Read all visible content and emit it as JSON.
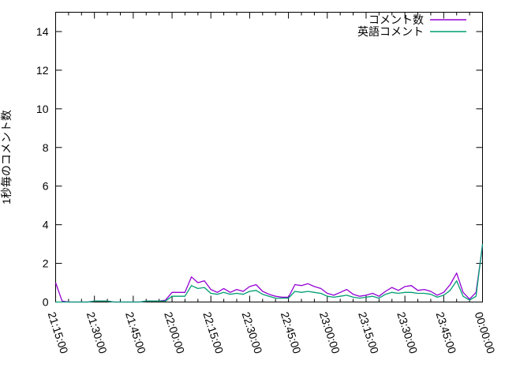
{
  "colors": {
    "background": "#ffffff",
    "axis": "#000000",
    "series_comments": "#9400d3",
    "series_english": "#009e73"
  },
  "chart_data": {
    "type": "line",
    "title": "",
    "xlabel": "",
    "ylabel": "1秒毎のコメント数",
    "ylim": [
      0,
      15
    ],
    "y_ticks": [
      0,
      2,
      4,
      6,
      8,
      10,
      12,
      14
    ],
    "x_range_minutes": [
      0,
      165
    ],
    "x_tick_interval_minutes": 15,
    "x_minor_tick_interval_minutes": 5,
    "x_tick_labels": [
      "21:15:00",
      "21:30:00",
      "21:45:00",
      "22:00:00",
      "22:15:00",
      "22:30:00",
      "22:45:00",
      "23:00:00",
      "23:15:00",
      "23:30:00",
      "23:45:00",
      "00:00:00"
    ],
    "grid": false,
    "legend_position": "top-right-inside",
    "x_offsets_minutes": [
      0,
      2.5,
      5,
      7.5,
      10,
      12.5,
      15,
      17.5,
      20,
      22.5,
      25,
      27.5,
      30,
      32.5,
      35,
      37.5,
      40,
      42.5,
      45,
      47.5,
      50,
      52.5,
      55,
      57.5,
      60,
      62.5,
      65,
      67.5,
      70,
      72.5,
      75,
      77.5,
      80,
      82.5,
      85,
      87.5,
      90,
      92.5,
      95,
      97.5,
      100,
      102.5,
      105,
      107.5,
      110,
      112.5,
      115,
      117.5,
      120,
      122.5,
      125,
      127.5,
      130,
      132.5,
      135,
      137.5,
      140,
      142.5,
      145,
      147.5,
      150,
      152.5,
      155,
      157.5,
      160,
      162.5,
      165
    ],
    "series": [
      {
        "name": "コメント数",
        "color": "#9400d3",
        "values": [
          1.0,
          0.05,
          0,
          0,
          0,
          0,
          0.05,
          0.05,
          0.05,
          0,
          0,
          0,
          0,
          0,
          0.05,
          0.05,
          0.05,
          0.1,
          0.5,
          0.5,
          0.5,
          1.3,
          1.0,
          1.1,
          0.65,
          0.5,
          0.7,
          0.5,
          0.65,
          0.55,
          0.8,
          0.9,
          0.55,
          0.4,
          0.3,
          0.25,
          0.25,
          0.9,
          0.85,
          0.95,
          0.8,
          0.7,
          0.45,
          0.35,
          0.5,
          0.65,
          0.4,
          0.3,
          0.35,
          0.45,
          0.3,
          0.55,
          0.75,
          0.6,
          0.8,
          0.85,
          0.6,
          0.65,
          0.55,
          0.35,
          0.5,
          0.9,
          1.5,
          0.5,
          0.15,
          0.5,
          2.9
        ]
      },
      {
        "name": "英語コメント",
        "color": "#009e73",
        "values": [
          0,
          0,
          0,
          0,
          0,
          0,
          0.05,
          0.05,
          0.05,
          0,
          0,
          0,
          0,
          0,
          0.05,
          0.05,
          0.05,
          0.05,
          0.3,
          0.3,
          0.3,
          0.85,
          0.7,
          0.75,
          0.45,
          0.4,
          0.5,
          0.4,
          0.45,
          0.4,
          0.55,
          0.6,
          0.4,
          0.3,
          0.2,
          0.2,
          0.2,
          0.55,
          0.5,
          0.55,
          0.5,
          0.45,
          0.3,
          0.25,
          0.3,
          0.35,
          0.25,
          0.2,
          0.25,
          0.3,
          0.2,
          0.4,
          0.5,
          0.45,
          0.5,
          0.5,
          0.45,
          0.45,
          0.4,
          0.25,
          0.35,
          0.6,
          1.1,
          0.3,
          0.1,
          0.3,
          3.0
        ]
      }
    ]
  }
}
